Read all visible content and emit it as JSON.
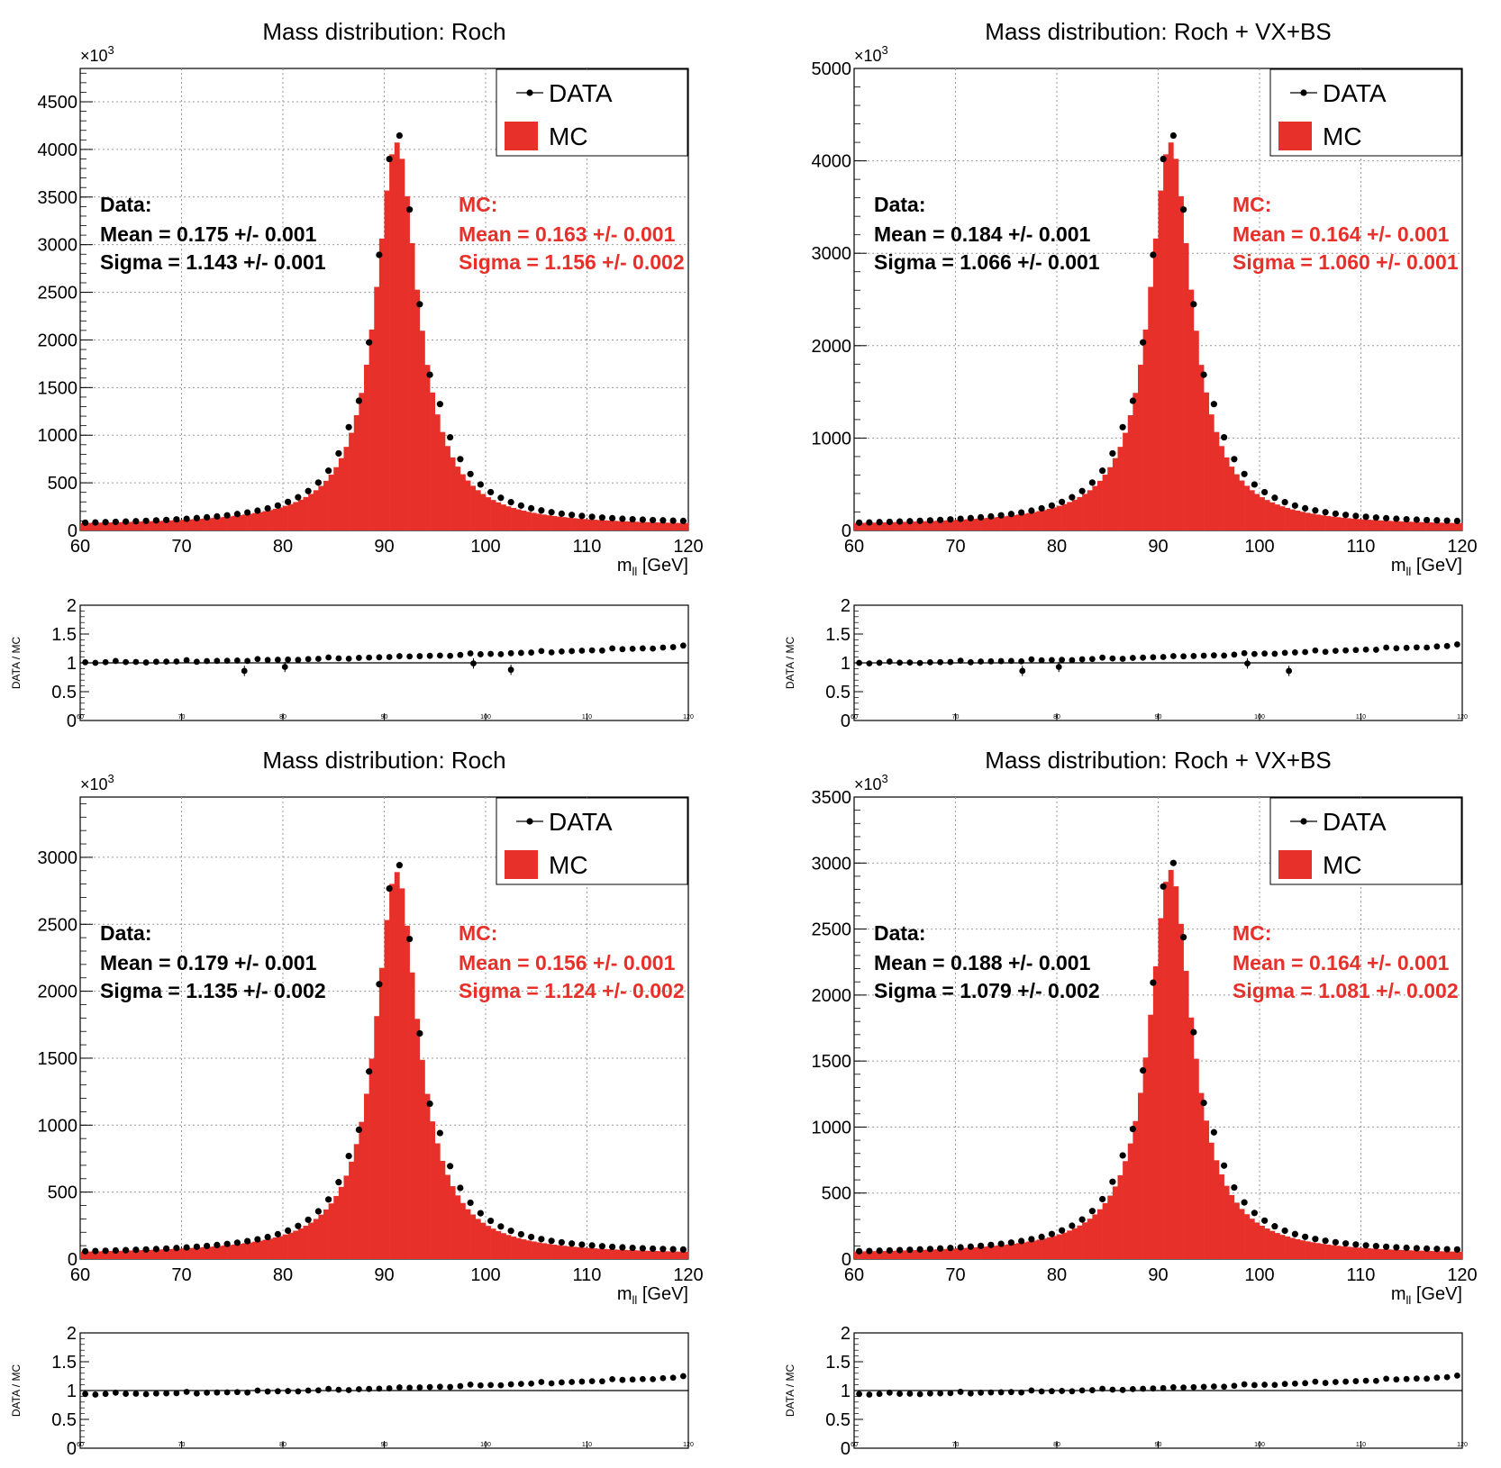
{
  "colors": {
    "mc_fill": "#e8302a",
    "data_marker": "#000000",
    "mc_text": "#e8302a",
    "data_text": "#000000",
    "grid": "#9a9a9a"
  },
  "axis_text": {
    "xlabel_main": "m",
    "xlabel_sub": "ll",
    "xlabel_unit": " [GeV]",
    "ratio_ylabel": "DATA / MC",
    "exp_base": "×10",
    "exp_power": "3"
  },
  "legend": {
    "data_label": "DATA",
    "mc_label": "MC"
  },
  "x_ticks": [
    "60",
    "70",
    "80",
    "90",
    "100",
    "110",
    "120"
  ],
  "ratio_ticks": [
    "0",
    "0.5",
    "1",
    "1.5",
    "2"
  ],
  "chart_data": [
    {
      "type": "bar",
      "title": "Mass distribution: Roch",
      "xlim": [
        60,
        120
      ],
      "ylim": [
        0,
        4850
      ],
      "y_ticks": [
        "0",
        "500",
        "1000",
        "1500",
        "2000",
        "2500",
        "3000",
        "3500",
        "4000",
        "4500"
      ],
      "peak": 4200,
      "data_stats": {
        "header": "Data:",
        "mean": "Mean = 0.175 +/- 0.001",
        "sigma": "Sigma = 1.143 +/- 0.001"
      },
      "mc_stats": {
        "header": "MC:",
        "mean": "Mean = 0.163 +/- 0.001",
        "sigma": "Sigma = 1.156 +/- 0.002"
      },
      "ratio": {
        "ylim": [
          0,
          2
        ],
        "start": 1.01,
        "end": 1.28,
        "outliers": [
          [
            76.2,
            0.86
          ],
          [
            80.2,
            0.93
          ],
          [
            98.8,
            0.99
          ],
          [
            102.5,
            0.88
          ]
        ]
      }
    },
    {
      "type": "bar",
      "title": "Mass distribution: Roch + VX+BS",
      "xlim": [
        60,
        120
      ],
      "ylim": [
        0,
        5000
      ],
      "y_ticks": [
        "0",
        "1000",
        "2000",
        "3000",
        "4000",
        "5000"
      ],
      "peak": 4330,
      "data_stats": {
        "header": "Data:",
        "mean": "Mean = 0.184 +/- 0.001",
        "sigma": "Sigma = 1.066 +/- 0.001"
      },
      "mc_stats": {
        "header": "MC:",
        "mean": "Mean = 0.164 +/- 0.001",
        "sigma": "Sigma = 1.060 +/- 0.001"
      },
      "ratio": {
        "ylim": [
          0,
          2
        ],
        "start": 1.0,
        "end": 1.3,
        "outliers": [
          [
            76.6,
            0.86
          ],
          [
            80.2,
            0.93
          ],
          [
            98.8,
            0.99
          ],
          [
            102.9,
            0.86
          ]
        ]
      }
    },
    {
      "type": "bar",
      "title": "Mass distribution: Roch",
      "xlim": [
        60,
        120
      ],
      "ylim": [
        0,
        3000
      ],
      "y_ticks": [
        "0",
        "500",
        "1000",
        "1500",
        "2000",
        "2500",
        "3000"
      ],
      "y_max_data": 3450,
      "peak": 2980,
      "data_stats": {
        "header": "Data:",
        "mean": "Mean = 0.179 +/- 0.001",
        "sigma": "Sigma = 1.135 +/- 0.002"
      },
      "mc_stats": {
        "header": "MC:",
        "mean": "Mean = 0.156 +/- 0.001",
        "sigma": "Sigma = 1.124 +/- 0.002"
      },
      "ratio": {
        "ylim": [
          0,
          2
        ],
        "start": 0.94,
        "end": 1.23,
        "outliers": []
      }
    },
    {
      "type": "bar",
      "title": "Mass distribution: Roch + VX+BS",
      "xlim": [
        60,
        120
      ],
      "ylim": [
        0,
        3500
      ],
      "y_ticks": [
        "0",
        "500",
        "1000",
        "1500",
        "2000",
        "2500",
        "3000",
        "3500"
      ],
      "peak": 3040,
      "data_stats": {
        "header": "Data:",
        "mean": "Mean = 0.188 +/- 0.001",
        "sigma": "Sigma = 1.079 +/- 0.002"
      },
      "mc_stats": {
        "header": "MC:",
        "mean": "Mean = 0.164 +/- 0.001",
        "sigma": "Sigma = 1.081 +/- 0.002"
      },
      "ratio": {
        "ylim": [
          0,
          2
        ],
        "start": 0.94,
        "end": 1.24,
        "outliers": []
      }
    }
  ]
}
